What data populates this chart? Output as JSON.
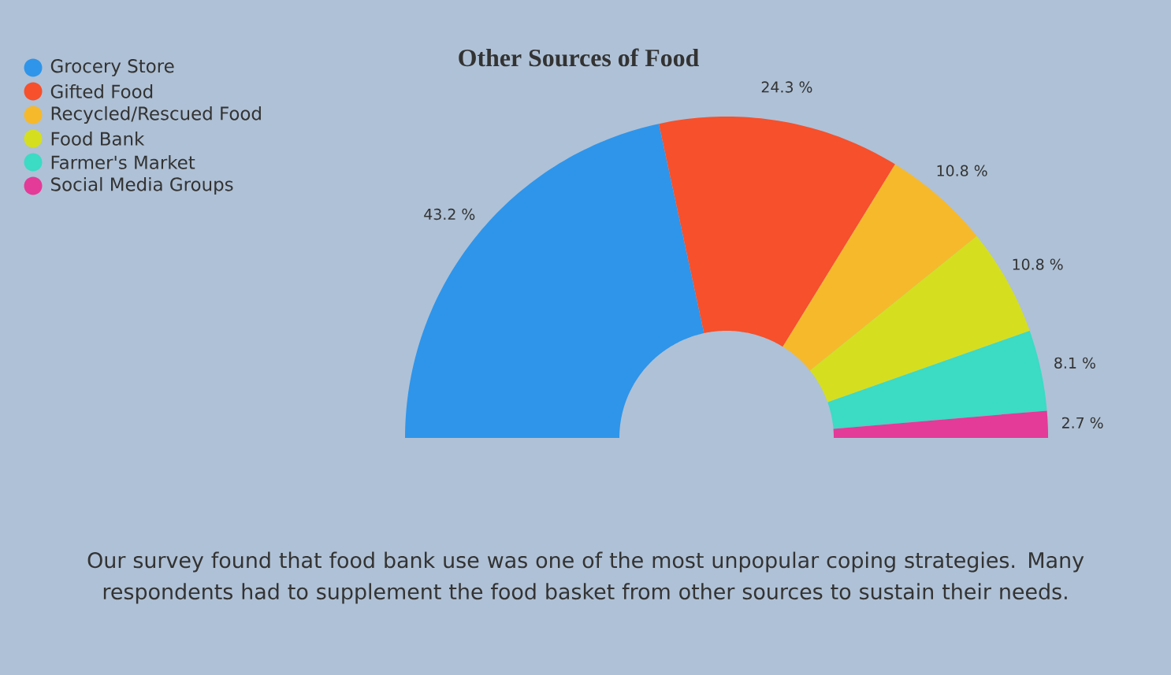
{
  "chart_data": {
    "type": "donut",
    "title": "Other Sources of Food",
    "categories": [
      "Grocery Store",
      "Gifted Food",
      "Recycled/Rescued Food",
      "Food Bank",
      "Farmer's Market",
      "Social Media Groups"
    ],
    "values": [
      43.2,
      24.3,
      10.8,
      10.8,
      8.1,
      2.7
    ],
    "value_labels": [
      "43.2 %",
      "24.3 %",
      "10.8 %",
      "10.8 %",
      "8.1 %",
      "2.7 %"
    ],
    "colors": [
      "#2e95ea",
      "#f6502c",
      "#f6b92c",
      "#d5df1f",
      "#3bdbc4",
      "#e43a98"
    ],
    "legend": "top left",
    "annotations": [
      "Our survey found that food bank use was one of the most unpopular coping strategies. Many respondents had to supplement the food basket from other sources to sustain their needs."
    ]
  }
}
